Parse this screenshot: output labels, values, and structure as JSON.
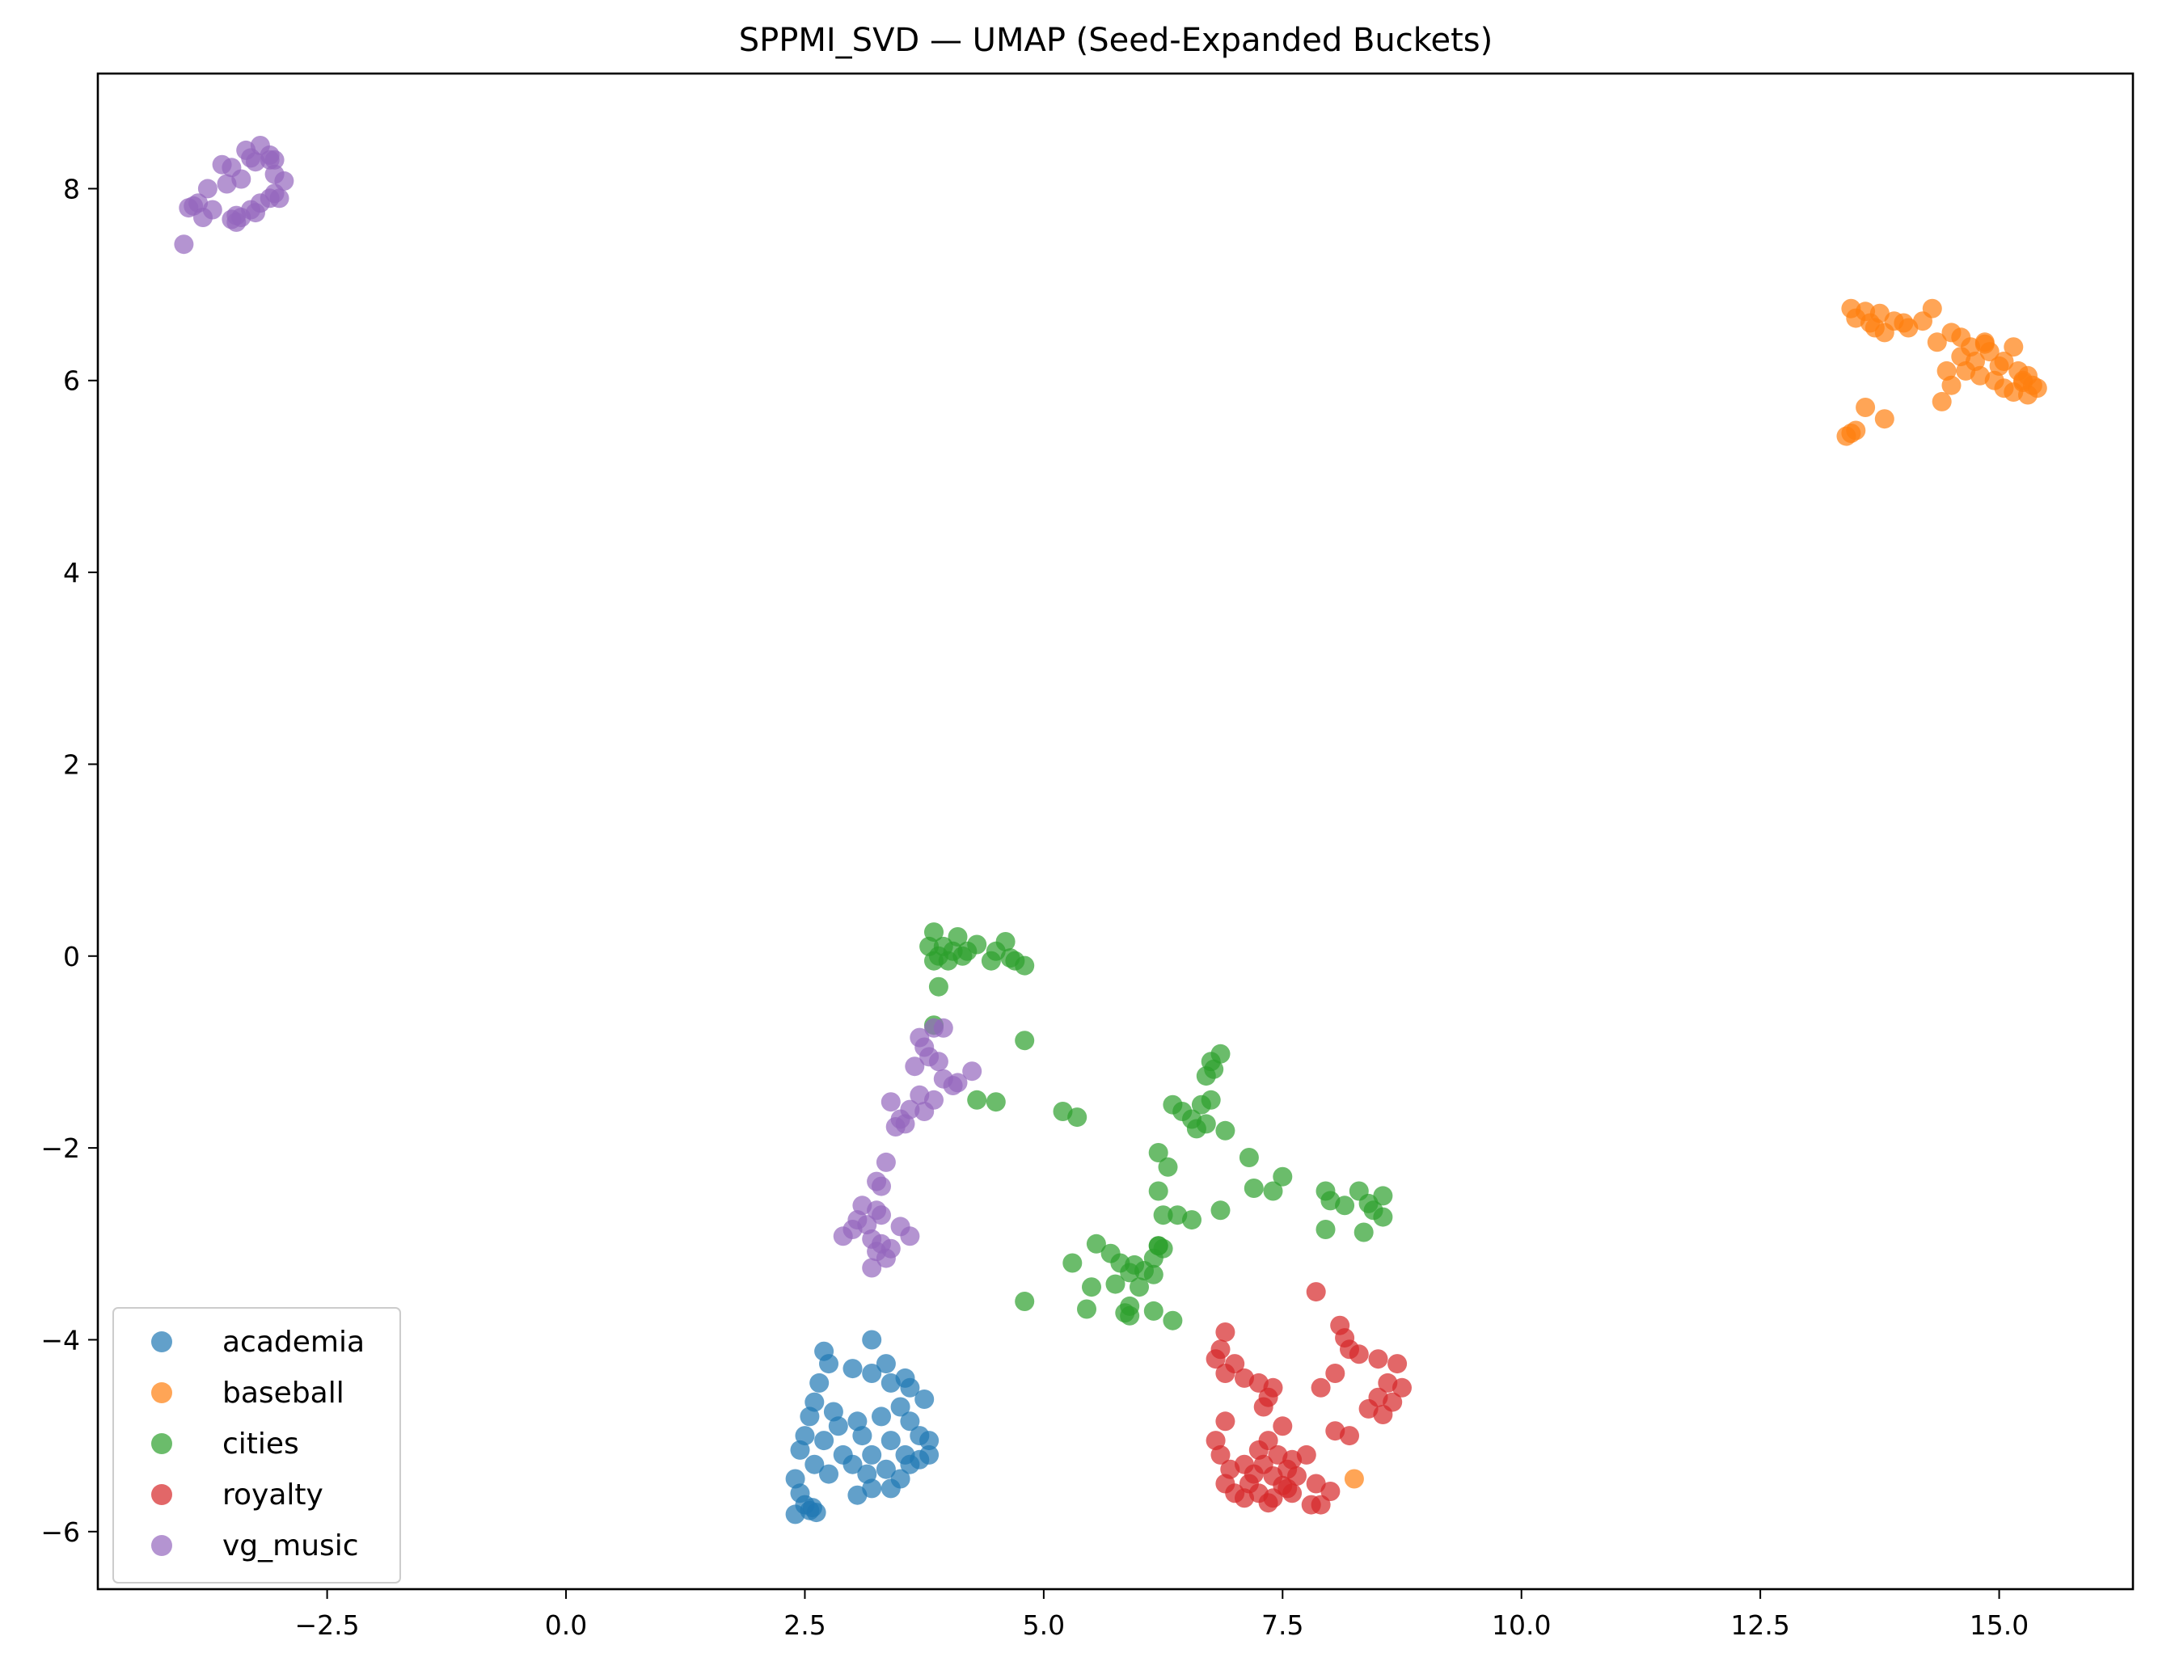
{
  "chart_data": {
    "type": "scatter",
    "title": "SPPMI_SVD — UMAP (Seed-Expanded Buckets)",
    "xlabel": "",
    "ylabel": "",
    "xlim": [
      -4.9,
      16.4
    ],
    "ylim": [
      -6.6,
      9.2
    ],
    "xticks": [
      -2.5,
      0.0,
      2.5,
      5.0,
      7.5,
      10.0,
      12.5,
      15.0
    ],
    "xtick_labels": [
      "−2.5",
      "0.0",
      "2.5",
      "5.0",
      "7.5",
      "10.0",
      "12.5",
      "15.0"
    ],
    "yticks": [
      -6,
      -4,
      -2,
      0,
      2,
      4,
      6,
      8
    ],
    "ytick_labels": [
      "−6",
      "−4",
      "−2",
      "0",
      "2",
      "4",
      "6",
      "8"
    ],
    "grid": false,
    "legend_position": "lower-left",
    "series": [
      {
        "name": "academia",
        "color": "#1f77b4",
        "points": [
          [
            2.7,
            -4.12
          ],
          [
            3.2,
            -4.0
          ],
          [
            2.75,
            -4.25
          ],
          [
            3.0,
            -4.3
          ],
          [
            3.35,
            -4.25
          ],
          [
            3.55,
            -4.4
          ],
          [
            3.2,
            -4.35
          ],
          [
            3.4,
            -4.45
          ],
          [
            2.65,
            -4.45
          ],
          [
            3.6,
            -4.5
          ],
          [
            3.75,
            -4.62
          ],
          [
            2.6,
            -4.65
          ],
          [
            2.8,
            -4.75
          ],
          [
            3.5,
            -4.7
          ],
          [
            3.3,
            -4.8
          ],
          [
            2.55,
            -4.8
          ],
          [
            3.05,
            -4.85
          ],
          [
            3.6,
            -4.85
          ],
          [
            2.85,
            -4.9
          ],
          [
            2.5,
            -5.0
          ],
          [
            3.7,
            -5.0
          ],
          [
            2.7,
            -5.05
          ],
          [
            3.1,
            -5.0
          ],
          [
            3.4,
            -5.05
          ],
          [
            2.45,
            -5.15
          ],
          [
            3.8,
            -5.05
          ],
          [
            2.9,
            -5.2
          ],
          [
            3.2,
            -5.2
          ],
          [
            3.55,
            -5.2
          ],
          [
            2.6,
            -5.3
          ],
          [
            3.0,
            -5.3
          ],
          [
            3.7,
            -5.25
          ],
          [
            3.35,
            -5.35
          ],
          [
            2.4,
            -5.45
          ],
          [
            3.15,
            -5.4
          ],
          [
            3.5,
            -5.45
          ],
          [
            2.75,
            -5.4
          ],
          [
            3.4,
            -5.55
          ],
          [
            3.05,
            -5.62
          ],
          [
            3.2,
            -5.55
          ],
          [
            2.45,
            -5.6
          ],
          [
            2.5,
            -5.72
          ],
          [
            2.55,
            -5.78
          ],
          [
            2.4,
            -5.82
          ],
          [
            2.62,
            -5.8
          ],
          [
            2.58,
            -5.75
          ],
          [
            3.6,
            -5.3
          ],
          [
            3.8,
            -5.2
          ]
        ]
      },
      {
        "name": "baseball",
        "color": "#ff7f0e",
        "points": [
          [
            13.45,
            6.75
          ],
          [
            13.6,
            6.72
          ],
          [
            13.75,
            6.7
          ],
          [
            13.5,
            6.65
          ],
          [
            13.65,
            6.6
          ],
          [
            13.9,
            6.62
          ],
          [
            14.0,
            6.6
          ],
          [
            14.3,
            6.75
          ],
          [
            14.2,
            6.62
          ],
          [
            14.05,
            6.55
          ],
          [
            13.7,
            6.55
          ],
          [
            13.8,
            6.5
          ],
          [
            14.5,
            6.5
          ],
          [
            14.6,
            6.45
          ],
          [
            14.85,
            6.4
          ],
          [
            14.35,
            6.4
          ],
          [
            14.7,
            6.35
          ],
          [
            15.15,
            6.35
          ],
          [
            14.9,
            6.3
          ],
          [
            14.6,
            6.25
          ],
          [
            14.75,
            6.2
          ],
          [
            15.05,
            6.2
          ],
          [
            15.0,
            6.15
          ],
          [
            14.45,
            6.1
          ],
          [
            14.65,
            6.1
          ],
          [
            15.2,
            6.1
          ],
          [
            15.3,
            6.05
          ],
          [
            14.8,
            6.05
          ],
          [
            14.95,
            6.0
          ],
          [
            15.25,
            5.98
          ],
          [
            15.35,
            5.95
          ],
          [
            15.05,
            5.92
          ],
          [
            15.15,
            5.88
          ],
          [
            15.3,
            5.85
          ],
          [
            15.4,
            5.92
          ],
          [
            14.5,
            5.95
          ],
          [
            14.4,
            5.78
          ],
          [
            13.6,
            5.72
          ],
          [
            13.8,
            5.6
          ],
          [
            13.5,
            5.48
          ],
          [
            13.45,
            5.45
          ],
          [
            13.4,
            5.42
          ],
          [
            14.85,
            6.38
          ],
          [
            15.25,
            6.0
          ],
          [
            8.25,
            -5.45
          ]
        ]
      },
      {
        "name": "cities",
        "color": "#2ca02c",
        "points": [
          [
            3.85,
            0.25
          ],
          [
            4.1,
            0.2
          ],
          [
            4.3,
            0.12
          ],
          [
            4.6,
            0.15
          ],
          [
            3.8,
            0.1
          ],
          [
            3.95,
            0.1
          ],
          [
            4.05,
            0.05
          ],
          [
            3.9,
            0.0
          ],
          [
            4.2,
            0.05
          ],
          [
            4.5,
            0.05
          ],
          [
            4.45,
            -0.05
          ],
          [
            4.65,
            -0.02
          ],
          [
            4.7,
            -0.05
          ],
          [
            4.8,
            -0.1
          ],
          [
            3.85,
            -0.05
          ],
          [
            4.0,
            -0.05
          ],
          [
            4.15,
            0.0
          ],
          [
            3.9,
            -0.32
          ],
          [
            4.8,
            -0.88
          ],
          [
            3.85,
            -0.72
          ],
          [
            4.3,
            -1.5
          ],
          [
            4.5,
            -1.52
          ],
          [
            5.2,
            -1.62
          ],
          [
            5.35,
            -1.68
          ],
          [
            6.85,
            -1.02
          ],
          [
            6.75,
            -1.1
          ],
          [
            6.78,
            -1.18
          ],
          [
            6.7,
            -1.25
          ],
          [
            6.65,
            -1.55
          ],
          [
            6.75,
            -1.5
          ],
          [
            6.35,
            -1.55
          ],
          [
            6.45,
            -1.62
          ],
          [
            6.55,
            -1.7
          ],
          [
            6.6,
            -1.8
          ],
          [
            6.7,
            -1.75
          ],
          [
            6.9,
            -1.82
          ],
          [
            6.2,
            -2.05
          ],
          [
            6.3,
            -2.2
          ],
          [
            7.15,
            -2.1
          ],
          [
            7.5,
            -2.3
          ],
          [
            7.2,
            -2.42
          ],
          [
            7.4,
            -2.45
          ],
          [
            7.95,
            -2.45
          ],
          [
            8.3,
            -2.45
          ],
          [
            8.55,
            -2.5
          ],
          [
            8.0,
            -2.55
          ],
          [
            8.15,
            -2.6
          ],
          [
            8.4,
            -2.58
          ],
          [
            8.45,
            -2.65
          ],
          [
            8.55,
            -2.72
          ],
          [
            8.35,
            -2.88
          ],
          [
            7.95,
            -2.85
          ],
          [
            6.85,
            -2.65
          ],
          [
            6.2,
            -2.45
          ],
          [
            6.25,
            -2.7
          ],
          [
            6.4,
            -2.7
          ],
          [
            6.55,
            -2.75
          ],
          [
            6.2,
            -3.02
          ],
          [
            6.25,
            -3.05
          ],
          [
            6.15,
            -3.15
          ],
          [
            5.55,
            -3.0
          ],
          [
            5.7,
            -3.1
          ],
          [
            5.8,
            -3.2
          ],
          [
            5.95,
            -3.22
          ],
          [
            6.05,
            -3.28
          ],
          [
            5.3,
            -3.2
          ],
          [
            5.9,
            -3.3
          ],
          [
            6.0,
            -3.45
          ],
          [
            5.75,
            -3.42
          ],
          [
            5.5,
            -3.45
          ],
          [
            6.15,
            -3.32
          ],
          [
            5.9,
            -3.65
          ],
          [
            5.85,
            -3.72
          ],
          [
            6.15,
            -3.7
          ],
          [
            5.45,
            -3.68
          ],
          [
            4.8,
            -3.6
          ],
          [
            6.35,
            -3.8
          ],
          [
            5.9,
            -3.75
          ],
          [
            6.2,
            -3.02
          ]
        ]
      },
      {
        "name": "royalty",
        "color": "#d62728",
        "points": [
          [
            7.85,
            -3.5
          ],
          [
            8.1,
            -3.85
          ],
          [
            6.9,
            -3.92
          ],
          [
            8.15,
            -3.98
          ],
          [
            6.85,
            -4.1
          ],
          [
            8.2,
            -4.1
          ],
          [
            8.3,
            -4.15
          ],
          [
            6.8,
            -4.2
          ],
          [
            7.0,
            -4.25
          ],
          [
            8.5,
            -4.2
          ],
          [
            8.7,
            -4.25
          ],
          [
            6.9,
            -4.35
          ],
          [
            7.1,
            -4.4
          ],
          [
            8.05,
            -4.35
          ],
          [
            7.25,
            -4.45
          ],
          [
            7.4,
            -4.5
          ],
          [
            7.9,
            -4.5
          ],
          [
            8.6,
            -4.45
          ],
          [
            8.75,
            -4.5
          ],
          [
            8.5,
            -4.6
          ],
          [
            8.65,
            -4.65
          ],
          [
            7.35,
            -4.6
          ],
          [
            7.3,
            -4.7
          ],
          [
            8.4,
            -4.72
          ],
          [
            8.55,
            -4.78
          ],
          [
            6.9,
            -4.85
          ],
          [
            7.5,
            -4.9
          ],
          [
            8.05,
            -4.95
          ],
          [
            8.2,
            -5.0
          ],
          [
            6.8,
            -5.05
          ],
          [
            7.35,
            -5.05
          ],
          [
            7.25,
            -5.15
          ],
          [
            6.85,
            -5.2
          ],
          [
            7.45,
            -5.2
          ],
          [
            7.6,
            -5.25
          ],
          [
            7.75,
            -5.2
          ],
          [
            7.1,
            -5.3
          ],
          [
            7.3,
            -5.3
          ],
          [
            7.55,
            -5.35
          ],
          [
            6.95,
            -5.35
          ],
          [
            7.2,
            -5.4
          ],
          [
            7.4,
            -5.42
          ],
          [
            7.65,
            -5.42
          ],
          [
            6.9,
            -5.5
          ],
          [
            7.15,
            -5.5
          ],
          [
            7.5,
            -5.52
          ],
          [
            7.85,
            -5.5
          ],
          [
            7.0,
            -5.6
          ],
          [
            7.25,
            -5.6
          ],
          [
            7.4,
            -5.65
          ],
          [
            7.6,
            -5.6
          ],
          [
            8.0,
            -5.58
          ],
          [
            7.35,
            -5.7
          ],
          [
            7.8,
            -5.72
          ],
          [
            7.9,
            -5.72
          ],
          [
            7.1,
            -5.65
          ],
          [
            7.55,
            -5.55
          ]
        ]
      },
      {
        "name": "vg_music",
        "color": "#9467bd",
        "points": [
          [
            -3.2,
            8.45
          ],
          [
            -3.35,
            8.4
          ],
          [
            -3.1,
            8.35
          ],
          [
            -3.05,
            8.3
          ],
          [
            -3.25,
            8.28
          ],
          [
            -3.5,
            8.22
          ],
          [
            -3.6,
            8.25
          ],
          [
            -3.05,
            8.15
          ],
          [
            -2.95,
            8.08
          ],
          [
            -3.4,
            8.1
          ],
          [
            -3.55,
            8.05
          ],
          [
            -3.75,
            8.0
          ],
          [
            -3.05,
            7.95
          ],
          [
            -3.1,
            7.9
          ],
          [
            -3.0,
            7.9
          ],
          [
            -3.2,
            7.85
          ],
          [
            -3.85,
            7.85
          ],
          [
            -3.9,
            7.82
          ],
          [
            -3.95,
            7.8
          ],
          [
            -3.7,
            7.78
          ],
          [
            -3.3,
            7.78
          ],
          [
            -3.25,
            7.75
          ],
          [
            -3.45,
            7.72
          ],
          [
            -3.8,
            7.7
          ],
          [
            -3.4,
            7.7
          ],
          [
            -3.5,
            7.68
          ],
          [
            -3.45,
            7.65
          ],
          [
            -4.0,
            7.42
          ],
          [
            -3.1,
            8.3
          ],
          [
            -3.3,
            8.32
          ],
          [
            3.85,
            -0.75
          ],
          [
            3.95,
            -0.75
          ],
          [
            3.7,
            -0.85
          ],
          [
            3.75,
            -0.95
          ],
          [
            3.8,
            -1.05
          ],
          [
            3.9,
            -1.1
          ],
          [
            3.65,
            -1.15
          ],
          [
            4.25,
            -1.2
          ],
          [
            3.95,
            -1.28
          ],
          [
            4.05,
            -1.35
          ],
          [
            4.1,
            -1.32
          ],
          [
            3.7,
            -1.45
          ],
          [
            3.85,
            -1.5
          ],
          [
            3.4,
            -1.52
          ],
          [
            3.6,
            -1.6
          ],
          [
            3.75,
            -1.62
          ],
          [
            3.5,
            -1.7
          ],
          [
            3.55,
            -1.75
          ],
          [
            3.45,
            -1.78
          ],
          [
            3.35,
            -2.15
          ],
          [
            3.25,
            -2.35
          ],
          [
            3.3,
            -2.4
          ],
          [
            3.1,
            -2.6
          ],
          [
            3.25,
            -2.65
          ],
          [
            3.3,
            -2.7
          ],
          [
            3.05,
            -2.75
          ],
          [
            3.15,
            -2.8
          ],
          [
            3.0,
            -2.85
          ],
          [
            3.5,
            -2.82
          ],
          [
            2.9,
            -2.92
          ],
          [
            3.2,
            -2.95
          ],
          [
            3.3,
            -3.0
          ],
          [
            3.6,
            -2.92
          ],
          [
            3.25,
            -3.08
          ],
          [
            3.35,
            -3.15
          ],
          [
            3.2,
            -3.25
          ],
          [
            3.4,
            -3.05
          ]
        ]
      }
    ]
  }
}
